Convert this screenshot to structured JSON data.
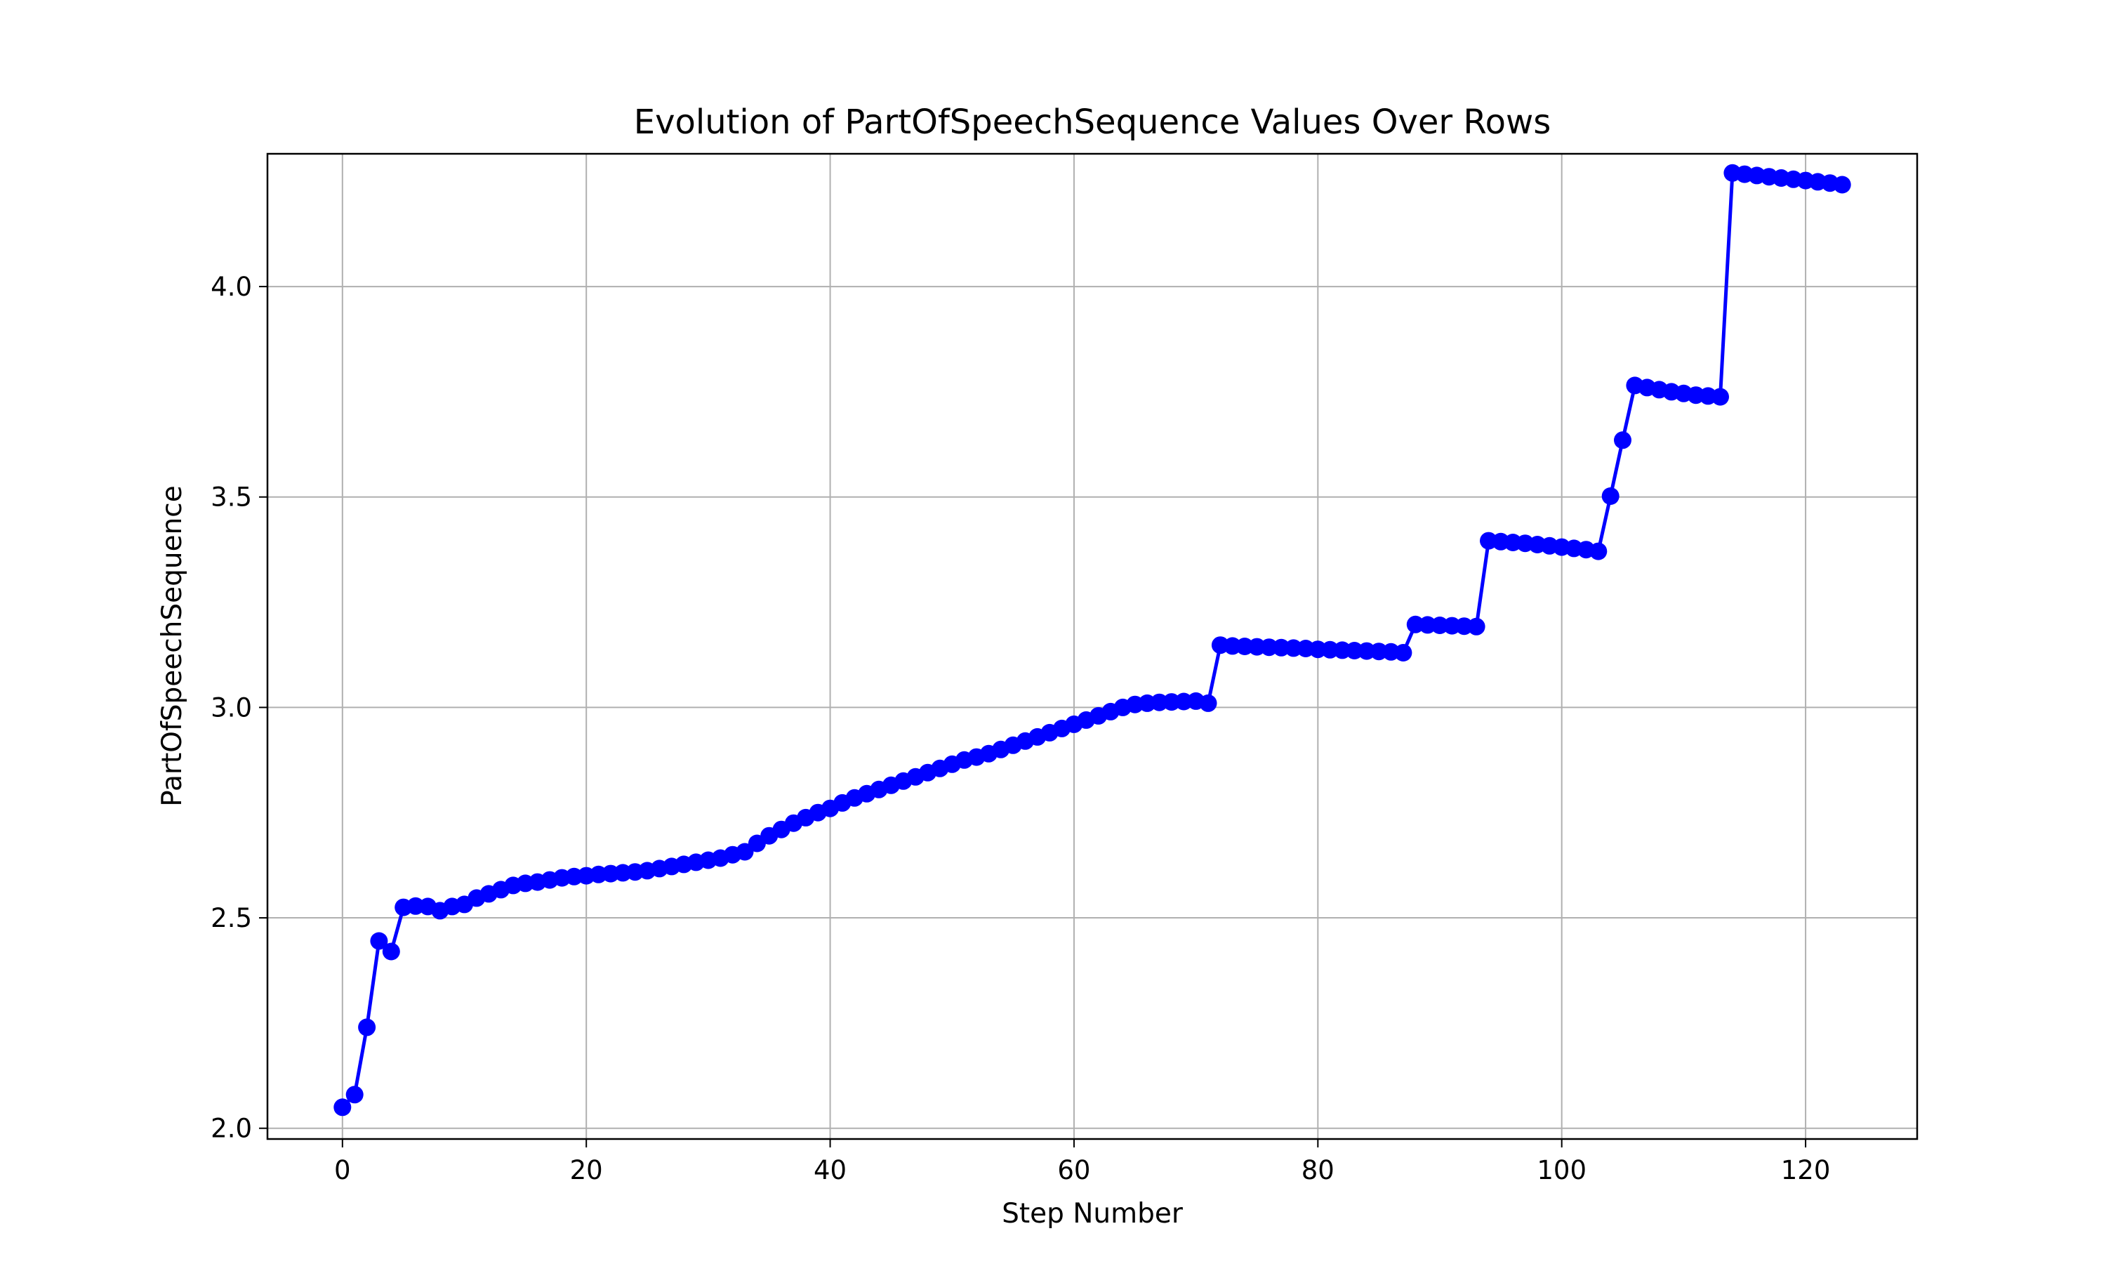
{
  "chart_data": {
    "type": "line",
    "title": "Evolution of PartOfSpeechSequence Values Over Rows",
    "xlabel": "Step Number",
    "ylabel": "PartOfSpeechSequence",
    "xlim": [
      -6.15,
      129.15
    ],
    "ylim": [
      1.9745,
      4.3155
    ],
    "xticks": [
      0,
      20,
      40,
      60,
      80,
      100,
      120
    ],
    "yticks": [
      2.0,
      2.5,
      3.0,
      3.5,
      4.0
    ],
    "xtick_labels": [
      "0",
      "20",
      "40",
      "60",
      "80",
      "100",
      "120"
    ],
    "ytick_labels": [
      "2.0",
      "2.5",
      "3.0",
      "3.5",
      "4.0"
    ],
    "grid": true,
    "legend": false,
    "series": [
      {
        "color": "#0000ff",
        "marker": "circle",
        "x": [
          0,
          1,
          2,
          3,
          4,
          5,
          6,
          7,
          8,
          9,
          10,
          11,
          12,
          13,
          14,
          15,
          16,
          17,
          18,
          19,
          20,
          21,
          22,
          23,
          24,
          25,
          26,
          27,
          28,
          29,
          30,
          31,
          32,
          33,
          34,
          35,
          36,
          37,
          38,
          39,
          40,
          41,
          42,
          43,
          44,
          45,
          46,
          47,
          48,
          49,
          50,
          51,
          52,
          53,
          54,
          55,
          56,
          57,
          58,
          59,
          60,
          61,
          62,
          63,
          64,
          65,
          66,
          67,
          68,
          69,
          70,
          71,
          72,
          73,
          74,
          75,
          76,
          77,
          78,
          79,
          80,
          81,
          82,
          83,
          84,
          85,
          86,
          87,
          88,
          89,
          90,
          91,
          92,
          93,
          94,
          95,
          96,
          97,
          98,
          99,
          100,
          101,
          102,
          103,
          104,
          105,
          106,
          107,
          108,
          109,
          110,
          111,
          112,
          113,
          114,
          115,
          116,
          117,
          118,
          119,
          120,
          121,
          122,
          123
        ],
        "values": [
          2.05,
          2.08,
          2.24,
          2.445,
          2.42,
          2.525,
          2.528,
          2.527,
          2.517,
          2.527,
          2.532,
          2.547,
          2.557,
          2.567,
          2.577,
          2.582,
          2.585,
          2.59,
          2.595,
          2.598,
          2.6,
          2.603,
          2.605,
          2.607,
          2.609,
          2.612,
          2.617,
          2.622,
          2.627,
          2.632,
          2.637,
          2.642,
          2.65,
          2.657,
          2.677,
          2.695,
          2.71,
          2.725,
          2.738,
          2.75,
          2.76,
          2.773,
          2.785,
          2.795,
          2.805,
          2.815,
          2.825,
          2.835,
          2.845,
          2.855,
          2.865,
          2.875,
          2.882,
          2.89,
          2.9,
          2.91,
          2.92,
          2.93,
          2.94,
          2.95,
          2.96,
          2.97,
          2.98,
          2.99,
          3.0,
          3.007,
          3.01,
          3.012,
          3.013,
          3.014,
          3.015,
          3.01,
          3.148,
          3.146,
          3.145,
          3.144,
          3.143,
          3.142,
          3.141,
          3.14,
          3.138,
          3.137,
          3.136,
          3.135,
          3.134,
          3.133,
          3.132,
          3.13,
          3.197,
          3.196,
          3.195,
          3.194,
          3.193,
          3.192,
          3.396,
          3.394,
          3.392,
          3.39,
          3.387,
          3.384,
          3.381,
          3.378,
          3.375,
          3.371,
          3.502,
          3.635,
          3.765,
          3.76,
          3.755,
          3.75,
          3.746,
          3.742,
          3.74,
          3.738,
          4.27,
          4.267,
          4.264,
          4.261,
          4.258,
          4.255,
          4.252,
          4.249,
          4.246,
          4.242
        ]
      }
    ]
  }
}
